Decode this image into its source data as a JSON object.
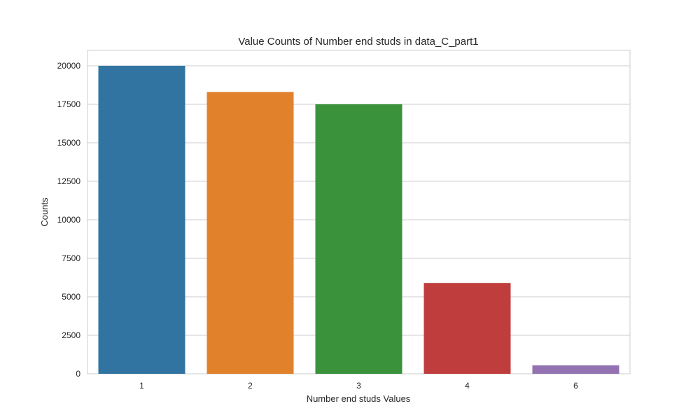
{
  "chart_data": {
    "type": "bar",
    "title": "Value Counts of Number end studs in data_C_part1",
    "xlabel": "Number end studs Values",
    "ylabel": "Counts",
    "categories": [
      "1",
      "2",
      "3",
      "4",
      "6"
    ],
    "values": [
      20000,
      18300,
      17500,
      5900,
      550
    ],
    "colors": [
      "#3274a1",
      "#e1812c",
      "#3a923a",
      "#c03d3e",
      "#9372b2"
    ],
    "ylim": [
      0,
      21000
    ],
    "yticks": [
      0,
      2500,
      5000,
      7500,
      10000,
      12500,
      15000,
      17500,
      20000
    ],
    "grid": true,
    "legend": "none"
  }
}
